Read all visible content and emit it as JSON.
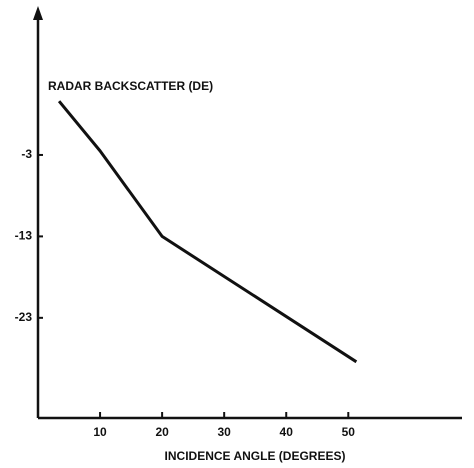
{
  "chart_data": {
    "type": "line",
    "title": "RADAR BACKSCATTER (DE)",
    "xlabel": "INCIDENCE ANGLE (DEGREES)",
    "x": [
      3.4,
      10,
      20,
      51.3
    ],
    "series": [
      {
        "color": "#111111",
        "values": [
          3.6,
          -2.5,
          -13,
          -28.4
        ]
      }
    ],
    "xlim": [
      0,
      68
    ],
    "xticks": [
      10,
      20,
      30,
      40,
      50
    ],
    "ylim": [
      -35.3,
      14.8
    ],
    "yticks": [
      -3,
      -13,
      -23
    ],
    "grid": false
  }
}
